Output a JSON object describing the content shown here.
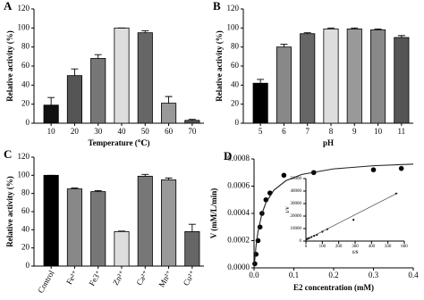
{
  "chart_data": [
    {
      "type": "bar",
      "panel_label": "A",
      "xlabel": "Temperature (℃)",
      "ylabel": "Relative activity (%)",
      "categories": [
        "10",
        "20",
        "30",
        "40",
        "50",
        "60",
        "70"
      ],
      "values": [
        19,
        50,
        68,
        100,
        95,
        21,
        3
      ],
      "errors": [
        8,
        7,
        4,
        0,
        2,
        7,
        1
      ],
      "colors": [
        "#111111",
        "#555555",
        "#777777",
        "#dddddd",
        "#666666",
        "#999999",
        "#555555"
      ],
      "ylim": [
        0,
        120
      ],
      "yticks": [
        0,
        20,
        40,
        60,
        80,
        100,
        120
      ]
    },
    {
      "type": "bar",
      "panel_label": "B",
      "xlabel": "pH",
      "ylabel": "Relative activity (%)",
      "categories": [
        "5",
        "6",
        "7",
        "8",
        "9",
        "10",
        "11"
      ],
      "values": [
        42,
        80,
        94,
        99,
        99,
        98,
        90
      ],
      "errors": [
        4,
        3,
        1,
        1,
        1,
        1,
        2
      ],
      "colors": [
        "#000000",
        "#888888",
        "#666666",
        "#dddddd",
        "#999999",
        "#888888",
        "#555555"
      ],
      "ylim": [
        0,
        120
      ],
      "yticks": [
        0,
        20,
        40,
        60,
        80,
        100,
        120
      ]
    },
    {
      "type": "bar",
      "panel_label": "C",
      "ylabel": "Relative activity (%)",
      "categories": [
        "Control",
        "Fe²⁺",
        "Fe3⁺",
        "Zn²⁺",
        "Ca²⁺",
        "Mn²⁺",
        "Cu²⁺"
      ],
      "values": [
        100,
        85,
        82,
        38,
        99,
        95,
        38
      ],
      "errors": [
        0,
        1,
        1,
        0.5,
        2,
        2,
        8
      ],
      "colors": [
        "#000000",
        "#888888",
        "#777777",
        "#dddddd",
        "#777777",
        "#999999",
        "#666666"
      ],
      "ylim": [
        0,
        120
      ],
      "yticks": [
        0,
        20,
        40,
        60,
        80,
        100,
        120
      ]
    },
    {
      "type": "scatter",
      "panel_label": "D",
      "xlabel": "E2 concentration (mM)",
      "ylabel": "V (mM/L/min)",
      "series": [
        {
          "style": "points",
          "color": "#000000",
          "x": [
            0.002,
            0.005,
            0.01,
            0.015,
            0.02,
            0.03,
            0.04,
            0.075,
            0.15,
            0.3,
            0.37
          ],
          "values": [
            3e-05,
            0.0001,
            0.0002,
            0.0003,
            0.0004,
            0.0005,
            0.00055,
            0.00068,
            0.0007,
            0.00072,
            0.00073
          ]
        },
        {
          "style": "line",
          "color": "#222222",
          "x": [
            0,
            0.005,
            0.01,
            0.02,
            0.03,
            0.05,
            0.08,
            0.12,
            0.2,
            0.3,
            0.4
          ],
          "values": [
            0,
            0.00016,
            0.000267,
            0.0004,
            0.00048,
            0.000571,
            0.00064,
            0.000686,
            0.000727,
            0.00075,
            0.000762
          ]
        }
      ],
      "xlim": [
        0,
        0.4
      ],
      "xticks": [
        {
          "value": 0,
          "label": "0.0"
        },
        {
          "value": 0.1,
          "label": "0.1"
        },
        {
          "value": 0.2,
          "label": "0.2"
        },
        {
          "value": 0.3,
          "label": "0.3"
        },
        {
          "value": 0.4,
          "label": "0.4"
        }
      ],
      "ylim": [
        0,
        0.0008
      ],
      "yticks": [
        {
          "value": 0,
          "label": "0.0000"
        },
        {
          "value": 0.0002,
          "label": "0.0002"
        },
        {
          "value": 0.0004,
          "label": "0.0004"
        },
        {
          "value": 0.0006,
          "label": "0.0006"
        },
        {
          "value": 0.0008,
          "label": "0.0008"
        }
      ]
    },
    {
      "type": "scatter",
      "xlabel": "1/S",
      "ylabel": "1/V",
      "series": [
        {
          "style": "points",
          "color": "#000000",
          "x": [
            3,
            7,
            13,
            20,
            33,
            50,
            67,
            100,
            130,
            290,
            550
          ],
          "values": [
            1400,
            1600,
            2000,
            2400,
            3200,
            4200,
            5000,
            7500,
            9500,
            17000,
            38000
          ]
        },
        {
          "style": "line",
          "color": "#444444",
          "x": [
            0,
            560
          ],
          "values": [
            1000,
            38500
          ]
        }
      ],
      "xlim": [
        0,
        600
      ],
      "xticks": [
        0,
        100,
        200,
        300,
        400,
        500,
        600
      ],
      "ylim": [
        0,
        50000
      ],
      "yticks": [
        0,
        10000,
        20000,
        30000,
        40000,
        50000
      ]
    }
  ]
}
